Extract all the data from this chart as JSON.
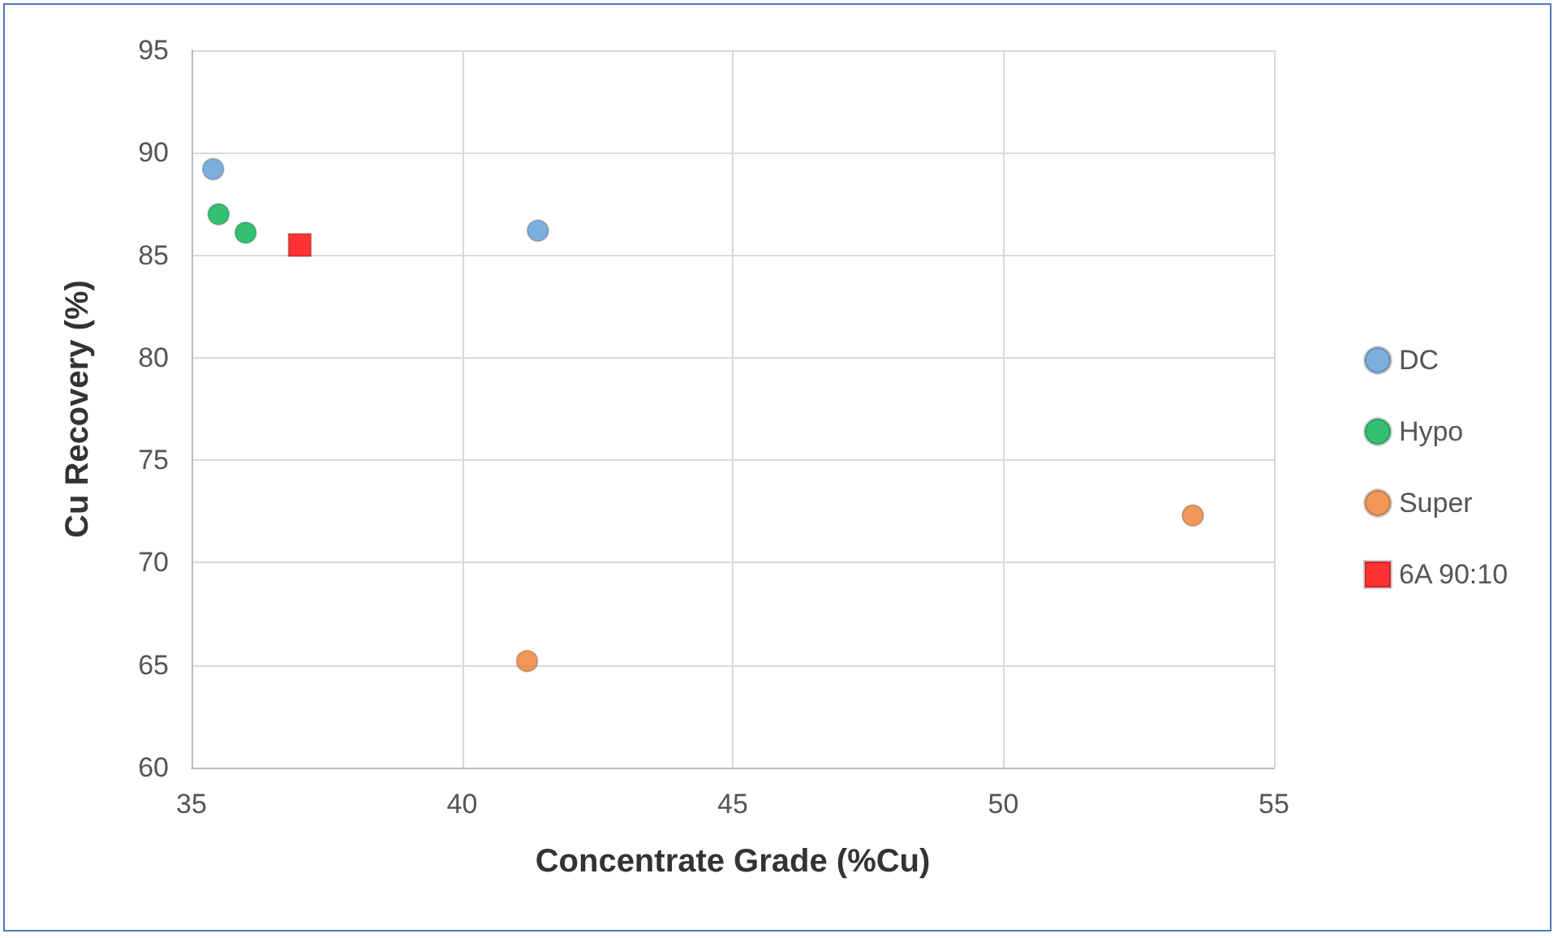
{
  "chart_data": {
    "type": "scatter",
    "xlabel": "Concentrate Grade (%Cu)",
    "ylabel": "Cu Recovery (%)",
    "xlim": [
      35,
      55
    ],
    "xticks": [
      35,
      40,
      45,
      50,
      55
    ],
    "ylim": [
      60,
      95
    ],
    "yticks": [
      60,
      65,
      70,
      75,
      80,
      85,
      90,
      95
    ],
    "grid": true,
    "legend": "right",
    "marker": "circle",
    "series": [
      {
        "name": "DC",
        "color": "#5b9bd5",
        "x": [
          35.4,
          41.4
        ],
        "values": [
          89.2,
          86.2
        ]
      },
      {
        "name": "Hypo",
        "color": "#00b050",
        "x": [
          35.5,
          36.0
        ],
        "values": [
          87.0,
          86.1
        ]
      },
      {
        "name": "Super",
        "color": "#ed7d31",
        "x": [
          41.2,
          53.5
        ],
        "values": [
          65.2,
          72.3
        ]
      },
      {
        "name": "6A 90:10",
        "color": "#ff0000",
        "marker": "square",
        "x": [
          37.0
        ],
        "values": [
          85.5
        ]
      }
    ]
  }
}
